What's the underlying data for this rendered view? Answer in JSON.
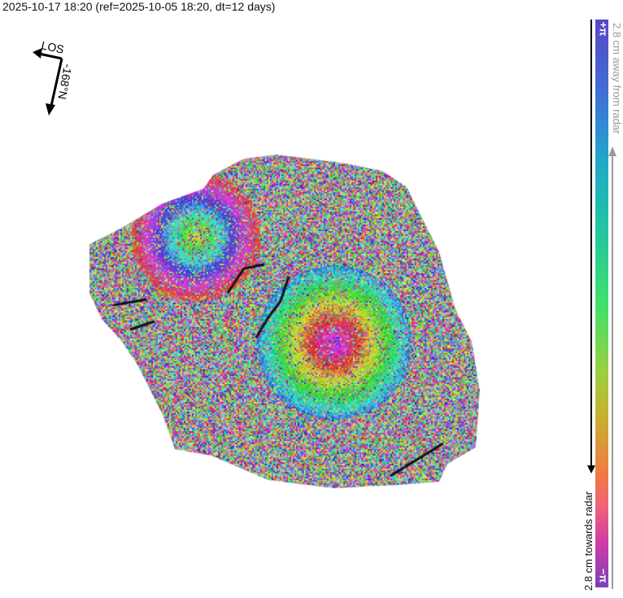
{
  "title": "2025-10-17 18:20 (ref=2025-10-05 18:20, dt=12 days)",
  "compass": {
    "los_label": "LOS",
    "heading_label": "-168°N",
    "icon": "los-heading-arrow-icon"
  },
  "colorbar": {
    "top_label": "+π",
    "bottom_label": "−π",
    "away_label": "2.8 cm away from radar",
    "towards_label": "2.8 cm towards radar",
    "colors": [
      "#5a46c4",
      "#3b78d8",
      "#1fc0a8",
      "#3ee06a",
      "#c8b030",
      "#f07a40",
      "#d03ca8",
      "#7a40b8"
    ]
  }
}
